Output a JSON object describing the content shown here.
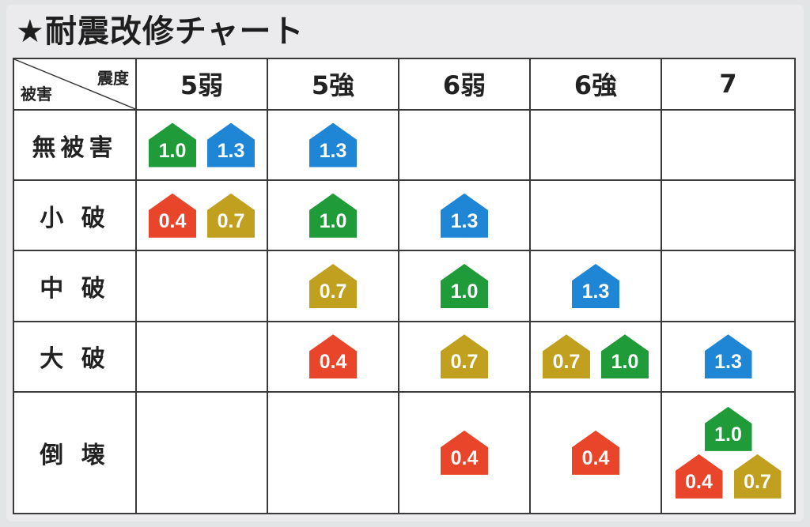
{
  "title": "★耐震改修チャート",
  "chart_data": {
    "type": "table",
    "corner": {
      "top": "震度",
      "bottom": "被害"
    },
    "columns": [
      "5弱",
      "5強",
      "6弱",
      "6強",
      "7"
    ],
    "rows": [
      {
        "label": "無被害",
        "cells": [
          [
            "1.0",
            "1.3"
          ],
          [
            "1.3"
          ],
          [],
          [],
          []
        ]
      },
      {
        "label": "小 破",
        "cells": [
          [
            "0.4",
            "0.7"
          ],
          [
            "1.0"
          ],
          [
            "1.3"
          ],
          [],
          []
        ]
      },
      {
        "label": "中 破",
        "cells": [
          [],
          [
            "0.7"
          ],
          [
            "1.0"
          ],
          [
            "1.3"
          ],
          []
        ]
      },
      {
        "label": "大 破",
        "cells": [
          [],
          [
            "0.4"
          ],
          [
            "0.7"
          ],
          [
            "0.7",
            "1.0"
          ],
          [
            "1.3"
          ]
        ]
      },
      {
        "label": "倒 壊",
        "cells": [
          [],
          [],
          [
            "0.4"
          ],
          [
            "0.4"
          ],
          [
            "1.0",
            "0.4",
            "0.7"
          ]
        ]
      }
    ],
    "value_colors": {
      "0.4": "#e8452a",
      "0.7": "#c1a020",
      "1.0": "#1f9b3a",
      "1.3": "#1f86d6"
    }
  }
}
